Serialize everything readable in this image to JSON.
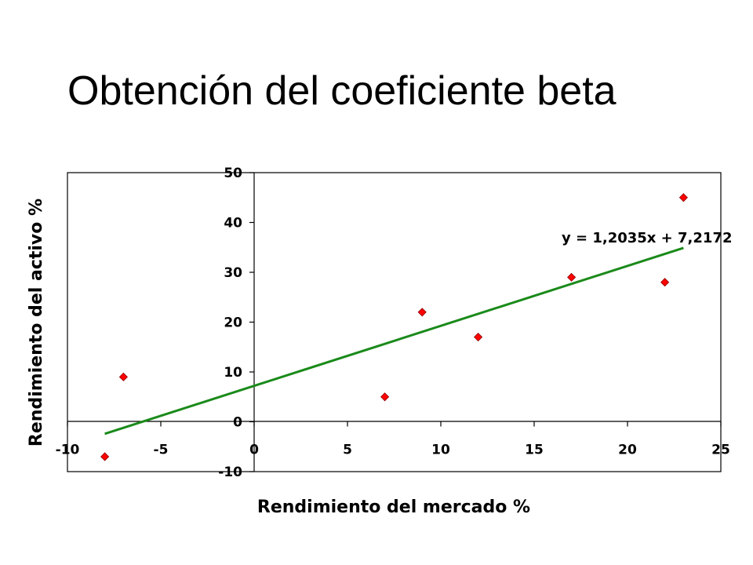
{
  "slide": {
    "title": "Obtención del coeficiente beta"
  },
  "chart_data": {
    "type": "scatter",
    "title": "",
    "xlabel": "Rendimiento del mercado %",
    "ylabel": "Rendimiento del activo %",
    "xlim": [
      -10,
      25
    ],
    "ylim": [
      -10,
      50
    ],
    "x_ticks": [
      "-10",
      "-5",
      "0",
      "5",
      "10",
      "15",
      "20",
      "25"
    ],
    "y_ticks": [
      "-10",
      "0",
      "10",
      "20",
      "30",
      "40",
      "50"
    ],
    "series": [
      {
        "points": [
          {
            "x": -8,
            "y": -7
          },
          {
            "x": -7,
            "y": 9
          },
          {
            "x": 7,
            "y": 5
          },
          {
            "x": 9,
            "y": 22
          },
          {
            "x": 12,
            "y": 17
          },
          {
            "x": 17,
            "y": 29
          },
          {
            "x": 22,
            "y": 28
          },
          {
            "x": 23,
            "y": 45
          }
        ],
        "marker": "diamond",
        "color": "#ff0000"
      }
    ],
    "trendline": {
      "slope": 1.2035,
      "intercept": 7.2172,
      "x_range": [
        -8,
        23
      ],
      "equation_label": "y = 1,2035x + 7,2172",
      "color": "#1a8a1a"
    },
    "grid": false,
    "legend": "none"
  }
}
